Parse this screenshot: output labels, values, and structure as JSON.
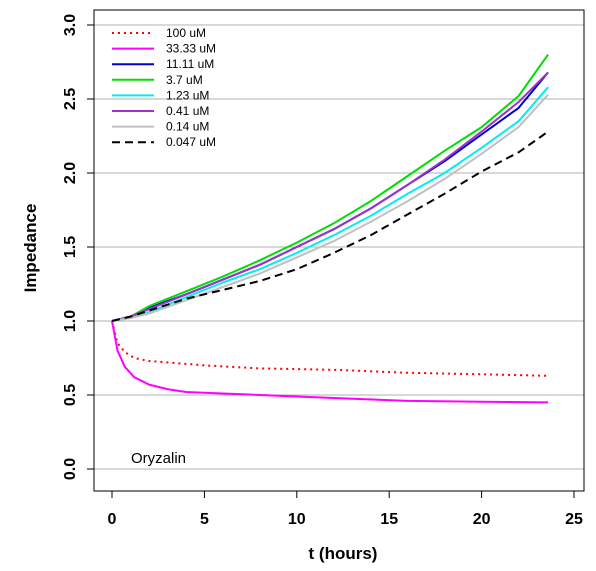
{
  "chart_data": {
    "type": "line",
    "xlabel": "t (hours)",
    "ylabel": "Impedance",
    "annotation": "Oryzalin",
    "xlim": [
      0,
      25
    ],
    "ylim": [
      0,
      3
    ],
    "x_ticks": [
      "0",
      "5",
      "10",
      "15",
      "20",
      "25"
    ],
    "y_ticks": [
      "0.0",
      "0.5",
      "1.0",
      "1.5",
      "2.0",
      "2.5",
      "3.0"
    ],
    "grid": "horizontal",
    "legend_position": "top-left",
    "series": [
      {
        "name": "100 uM",
        "color": "#ff0000",
        "dash": "dotted",
        "x": [
          0,
          0.3,
          0.7,
          1.2,
          2,
          3,
          5,
          8,
          12,
          16,
          20,
          23.6
        ],
        "y": [
          1.0,
          0.85,
          0.79,
          0.75,
          0.73,
          0.72,
          0.7,
          0.68,
          0.67,
          0.65,
          0.64,
          0.63
        ]
      },
      {
        "name": "33.33 uM",
        "color": "#ff00ff",
        "dash": "solid",
        "x": [
          0,
          0.3,
          0.7,
          1.2,
          2,
          3,
          4,
          6,
          8,
          12,
          16,
          20,
          23.6
        ],
        "y": [
          1.0,
          0.8,
          0.69,
          0.62,
          0.57,
          0.54,
          0.52,
          0.51,
          0.5,
          0.48,
          0.46,
          0.455,
          0.45
        ]
      },
      {
        "name": "11.11 uM",
        "color": "#0000cc",
        "dash": "solid",
        "x": [
          0,
          1,
          2,
          4,
          6,
          8,
          10,
          12,
          14,
          16,
          18,
          20,
          22,
          23.6
        ],
        "y": [
          1.0,
          1.03,
          1.09,
          1.18,
          1.28,
          1.38,
          1.5,
          1.62,
          1.76,
          1.92,
          2.08,
          2.26,
          2.44,
          2.68
        ]
      },
      {
        "name": "3.7 uM",
        "color": "#00dd00",
        "dash": "solid",
        "x": [
          0,
          1,
          2,
          4,
          6,
          8,
          10,
          12,
          14,
          16,
          18,
          20,
          22,
          23.6
        ],
        "y": [
          1.0,
          1.03,
          1.1,
          1.2,
          1.3,
          1.41,
          1.53,
          1.66,
          1.81,
          1.98,
          2.15,
          2.31,
          2.52,
          2.8
        ]
      },
      {
        "name": "1.23 uM",
        "color": "#00eeee",
        "dash": "solid",
        "x": [
          0,
          1,
          2,
          4,
          6,
          8,
          10,
          12,
          14,
          16,
          18,
          20,
          22,
          23.6
        ],
        "y": [
          1.0,
          1.02,
          1.06,
          1.16,
          1.26,
          1.35,
          1.46,
          1.58,
          1.71,
          1.86,
          2.0,
          2.17,
          2.35,
          2.58
        ]
      },
      {
        "name": "0.41 uM",
        "color": "#9933cc",
        "dash": "solid",
        "x": [
          0,
          1,
          2,
          4,
          6,
          8,
          10,
          12,
          14,
          16,
          18,
          20,
          22,
          23.6
        ],
        "y": [
          1.0,
          1.03,
          1.08,
          1.18,
          1.28,
          1.38,
          1.5,
          1.62,
          1.76,
          1.92,
          2.09,
          2.28,
          2.48,
          2.68
        ]
      },
      {
        "name": "0.14 uM",
        "color": "#c0c0c0",
        "dash": "solid",
        "x": [
          0,
          1,
          2,
          4,
          6,
          8,
          10,
          12,
          14,
          16,
          18,
          20,
          22,
          23.6
        ],
        "y": [
          1.0,
          1.02,
          1.05,
          1.14,
          1.23,
          1.32,
          1.43,
          1.54,
          1.67,
          1.81,
          1.96,
          2.13,
          2.31,
          2.53
        ]
      },
      {
        "name": "0.047 uM",
        "color": "#000000",
        "dash": "dashed",
        "x": [
          0,
          1,
          2,
          4,
          6,
          8,
          10,
          12,
          14,
          16,
          18,
          20,
          22,
          23.6
        ],
        "y": [
          1.0,
          1.03,
          1.07,
          1.15,
          1.21,
          1.27,
          1.35,
          1.46,
          1.58,
          1.72,
          1.86,
          2.01,
          2.14,
          2.28
        ]
      }
    ]
  }
}
